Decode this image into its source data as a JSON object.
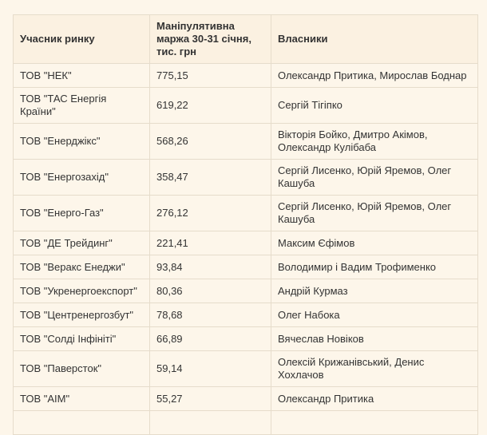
{
  "table": {
    "header": [
      "Учасник ринку",
      "Маніпулятивна маржа 30-31 січня, тис. грн",
      "Власники"
    ],
    "rows": [
      [
        "ТОВ \"НЕК\"",
        "775,15",
        "Олександр Притика, Мирослав Боднар"
      ],
      [
        "ТОВ \"ТАС Енергія Країни\"",
        "619,22",
        "Сергій Тігіпко"
      ],
      [
        "ТОВ \"Енерджікс\"",
        "568,26",
        "Вікторія Бойко, Дмитро Акімов, Олександр Кулібаба"
      ],
      [
        "ТОВ \"Енергозахід\"",
        "358,47",
        "Сергій Лисенко, Юрій Яремов, Олег Кашуба"
      ],
      [
        "ТОВ \"Енерго-Газ\"",
        "276,12",
        "Сергій Лисенко, Юрій Яремов, Олег Кашуба"
      ],
      [
        "ТОВ \"ДЕ Трейдинг\"",
        "221,41",
        "Максим Єфімов"
      ],
      [
        "ТОВ \"Веракс Енеджи\"",
        "93,84",
        "Володимир і Вадим Трофименко"
      ],
      [
        "ТОВ \"Укренергоекспорт\"",
        "80,36",
        "Андрій Курмаз"
      ],
      [
        "ТОВ \"Центренергозбут\"",
        "78,68",
        "Олег Набока"
      ],
      [
        "ТОВ \"Солді Інфініті\"",
        "66,89",
        "Вячеслав Новіков"
      ],
      [
        "ТОВ \"Паверсток\"",
        "59,14",
        "Олексій Крижанівський, Денис Хохлачов"
      ],
      [
        "ТОВ \"АІМ\"",
        "55,27",
        "Олександр Притика"
      ]
    ]
  }
}
